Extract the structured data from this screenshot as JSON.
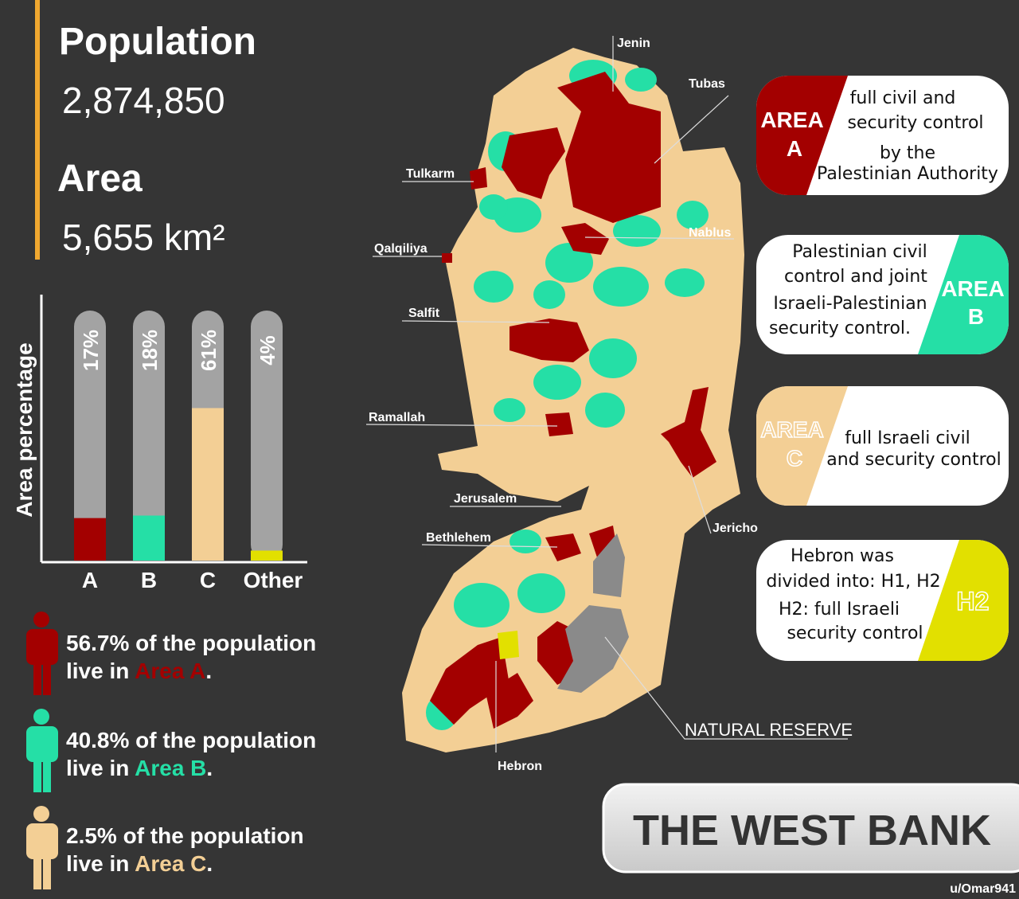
{
  "summary": {
    "population_label": "Population",
    "population": "2,874,850",
    "area_label": "Area",
    "area": "5,655 km²"
  },
  "chart_data": {
    "type": "bar",
    "y_label": "Area percentage",
    "categories": [
      "A",
      "B",
      "C",
      "Other"
    ],
    "values": [
      17,
      18,
      61,
      4
    ],
    "value_labels": [
      "17%",
      "18%",
      "61%",
      "4%"
    ],
    "colors": [
      "#a30000",
      "#25dfa6",
      "#f3cf95",
      "#e2e000"
    ],
    "ylim": [
      0,
      100
    ]
  },
  "population_stats": [
    {
      "line1": "56.7% of the population",
      "line2": "live in",
      "area": "Area A",
      "end": "."
    },
    {
      "line1": "40.8% of the population",
      "line2": "live in",
      "area": "Area B",
      "end": "."
    },
    {
      "line1": "2.5% of the population",
      "line2": "live in",
      "area": "Area C",
      "end": "."
    }
  ],
  "map_labels": [
    "Jenin",
    "Tubas",
    "Tulkarm",
    "Nablus",
    "Qalqiliya",
    "Salfit",
    "Ramallah",
    "Jerusalem",
    "Bethlehem",
    "Jericho",
    "Hebron",
    "NATURAL RESERVE"
  ],
  "legend": [
    {
      "tag": "AREA",
      "letter": "A",
      "text": [
        "full civil and",
        "security control",
        "by the",
        "Palestinian Authority"
      ]
    },
    {
      "tag": "AREA",
      "letter": "B",
      "text": [
        "Palestinian civil",
        "control and joint",
        "Israeli-Palestinian",
        "security control."
      ]
    },
    {
      "tag": "AREA",
      "letter": "C",
      "text": [
        "full Israeli civil",
        "and security control"
      ]
    },
    {
      "tag": "H2",
      "text": [
        "Hebron was",
        "divided into: H1, H2",
        "H2: full Israeli",
        "security control"
      ]
    }
  ],
  "title": "THE WEST BANK",
  "credit": "u/Omar941"
}
